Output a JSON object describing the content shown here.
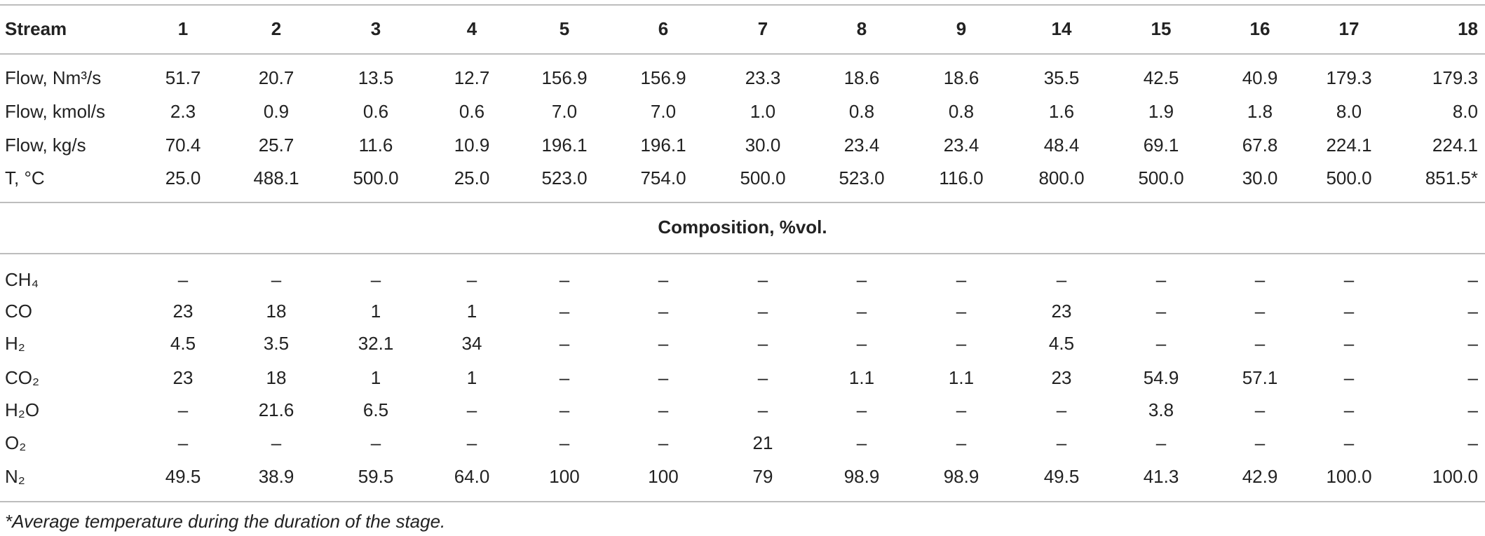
{
  "table": {
    "header": [
      "Stream",
      "1",
      "2",
      "3",
      "4",
      "5",
      "6",
      "7",
      "8",
      "9",
      "14",
      "15",
      "16",
      "17",
      "18"
    ],
    "rows": [
      [
        "Flow, Nm³/s",
        "51.7",
        "20.7",
        "13.5",
        "12.7",
        "156.9",
        "156.9",
        "23.3",
        "18.6",
        "18.6",
        "35.5",
        "42.5",
        "40.9",
        "179.3",
        "179.3"
      ],
      [
        "Flow, kmol/s",
        "2.3",
        "0.9",
        "0.6",
        "0.6",
        "7.0",
        "7.0",
        "1.0",
        "0.8",
        "0.8",
        "1.6",
        "1.9",
        "1.8",
        "8.0",
        "8.0"
      ],
      [
        "Flow, kg/s",
        "70.4",
        "25.7",
        "11.6",
        "10.9",
        "196.1",
        "196.1",
        "30.0",
        "23.4",
        "23.4",
        "48.4",
        "69.1",
        "67.8",
        "224.1",
        "224.1"
      ],
      [
        "T, °C",
        "25.0",
        "488.1",
        "500.0",
        "25.0",
        "523.0",
        "754.0",
        "500.0",
        "523.0",
        "116.0",
        "800.0",
        "500.0",
        "30.0",
        "500.0",
        "851.5*"
      ]
    ],
    "section": "Composition, %vol.",
    "composition_rows": [
      [
        "CH₄",
        "–",
        "–",
        "–",
        "–",
        "–",
        "–",
        "–",
        "–",
        "–",
        "–",
        "–",
        "–",
        "–",
        "–"
      ],
      [
        "CO",
        "23",
        "18",
        "1",
        "1",
        "–",
        "–",
        "–",
        "–",
        "–",
        "23",
        "–",
        "–",
        "–",
        "–"
      ],
      [
        "H₂",
        "4.5",
        "3.5",
        "32.1",
        "34",
        "–",
        "–",
        "–",
        "–",
        "–",
        "4.5",
        "–",
        "–",
        "–",
        "–"
      ],
      [
        "CO₂",
        "23",
        "18",
        "1",
        "1",
        "–",
        "–",
        "–",
        "1.1",
        "1.1",
        "23",
        "54.9",
        "57.1",
        "–",
        "–"
      ],
      [
        "H₂O",
        "–",
        "21.6",
        "6.5",
        "–",
        "–",
        "–",
        "–",
        "–",
        "–",
        "–",
        "3.8",
        "–",
        "–",
        "–"
      ],
      [
        "O₂",
        "–",
        "–",
        "–",
        "–",
        "–",
        "–",
        "21",
        "–",
        "–",
        "–",
        "–",
        "–",
        "–",
        "–"
      ],
      [
        "N₂",
        "49.5",
        "38.9",
        "59.5",
        "64.0",
        "100",
        "100",
        "79",
        "98.9",
        "98.9",
        "49.5",
        "41.3",
        "42.9",
        "100.0",
        "100.0"
      ]
    ]
  },
  "footnote": "*Average temperature during the duration of the stage."
}
